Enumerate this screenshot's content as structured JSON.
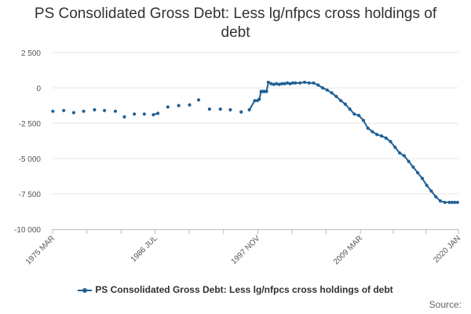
{
  "chart_data": {
    "type": "line",
    "title": "PS Consolidated Gross Debt: Less lg/nfpcs cross holdings of debt",
    "xlabel": "",
    "ylabel": "",
    "ylim": [
      -10000,
      2500
    ],
    "yticks": [
      "2 500",
      "0",
      "-2 500",
      "-5 000",
      "-7 500",
      "-10 000"
    ],
    "ytick_values": [
      2500,
      0,
      -2500,
      -5000,
      -7500,
      -10000
    ],
    "xticks": [
      "1975 MAR",
      "1986 JUL",
      "1997 NOV",
      "2009 MAR",
      "2020 JAN"
    ],
    "xtick_values": [
      1975.17,
      1986.5,
      1997.83,
      2009.17,
      2020.0
    ],
    "grid": "horizontal",
    "legend_position": "bottom",
    "color": "#206095",
    "series": [
      {
        "name": "PS Consolidated Gross Debt: Less lg/nfpcs cross holdings of debt",
        "x": [
          1975.2,
          1976.4,
          1977.5,
          1978.6,
          1979.8,
          1980.9,
          1982.1,
          1983.1,
          1984.2,
          1985.3,
          1986.3,
          1986.8,
          1987.9,
          1989.1,
          1990.3,
          1991.3,
          1992.5,
          1993.7,
          1994.8,
          1996.0,
          1996.9,
          1997.5,
          1997.8,
          1998.0,
          1998.2,
          1998.4,
          1998.6,
          1998.8,
          1999.0,
          1999.3,
          1999.6,
          1999.9,
          2000.2,
          2000.5,
          2000.8,
          2001.1,
          2001.4,
          2001.7,
          2002.0,
          2002.5,
          2003.0,
          2003.5,
          2004.0,
          2004.5,
          2005.0,
          2005.5,
          2006.0,
          2006.5,
          2007.0,
          2007.5,
          2008.0,
          2008.5,
          2009.0,
          2009.5,
          2010.0,
          2010.5,
          2011.0,
          2011.5,
          2012.0,
          2012.5,
          2013.0,
          2013.5,
          2014.0,
          2014.5,
          2015.0,
          2015.5,
          2016.0,
          2016.5,
          2017.0,
          2017.5,
          2018.0,
          2018.5,
          2019.0,
          2019.3,
          2019.6,
          2019.9
        ],
        "values": [
          -1650,
          -1600,
          -1750,
          -1650,
          -1550,
          -1600,
          -1650,
          -2050,
          -1850,
          -1850,
          -1900,
          -1800,
          -1350,
          -1250,
          -1200,
          -850,
          -1500,
          -1500,
          -1550,
          -1700,
          -1550,
          -900,
          -900,
          -800,
          -250,
          -250,
          -250,
          -250,
          400,
          300,
          250,
          300,
          250,
          300,
          300,
          350,
          300,
          350,
          350,
          350,
          400,
          350,
          350,
          200,
          0,
          -150,
          -350,
          -600,
          -900,
          -1150,
          -1500,
          -1850,
          -1950,
          -2300,
          -2850,
          -3100,
          -3300,
          -3400,
          -3550,
          -3800,
          -4200,
          -4600,
          -4800,
          -5200,
          -5600,
          -6000,
          -6400,
          -6900,
          -7300,
          -7700,
          -8000,
          -8100,
          -8100,
          -8100,
          -8100,
          -8100
        ]
      }
    ]
  },
  "legend_label": "PS Consolidated Gross Debt: Less lg/nfpcs cross holdings of debt",
  "source_label": "Source:"
}
